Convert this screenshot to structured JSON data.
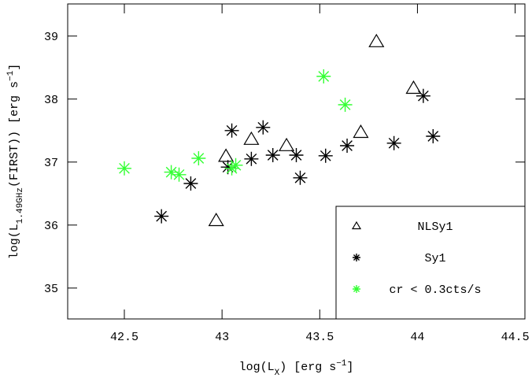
{
  "chart_data": {
    "type": "scatter",
    "xlabel": [
      "log(L",
      "X",
      ") [erg s",
      "−1",
      "]"
    ],
    "ylabel": [
      "log(L",
      "1.49GHz",
      "(FIRST)) [erg s",
      "−1",
      "]"
    ],
    "xlim": [
      42.21,
      44.55
    ],
    "ylim": [
      34.51,
      39.51
    ],
    "xticks": [
      42.5,
      43,
      43.5,
      44,
      44.5
    ],
    "yticks": [
      35,
      36,
      37,
      38,
      39
    ],
    "legend": "lower right",
    "series": [
      {
        "name": "NLSy1",
        "color": "#000000",
        "marker": "triangle",
        "x": [
          43.79,
          43.98,
          43.71,
          43.15,
          43.33,
          43.02,
          42.97
        ],
        "values": [
          38.91,
          38.17,
          37.47,
          37.36,
          37.26,
          37.09,
          36.07
        ]
      },
      {
        "name": "Sy1",
        "color": "#000000",
        "marker": "asterisk",
        "x": [
          42.69,
          42.84,
          43.05,
          43.03,
          43.15,
          43.21,
          43.26,
          43.38,
          43.4,
          43.53,
          43.64,
          43.88,
          44.03,
          44.08
        ],
        "values": [
          36.14,
          36.66,
          37.5,
          36.92,
          37.05,
          37.55,
          37.11,
          37.11,
          36.75,
          37.1,
          37.26,
          37.3,
          38.05,
          37.41
        ]
      },
      {
        "name": "cr < 0.3cts/s",
        "color": "#33ff33",
        "marker": "asterisk",
        "x": [
          42.5,
          42.74,
          42.78,
          42.88,
          43.05,
          43.07,
          43.52,
          43.63
        ],
        "values": [
          36.9,
          36.84,
          36.8,
          37.06,
          36.9,
          36.95,
          38.36,
          37.91
        ]
      }
    ]
  }
}
